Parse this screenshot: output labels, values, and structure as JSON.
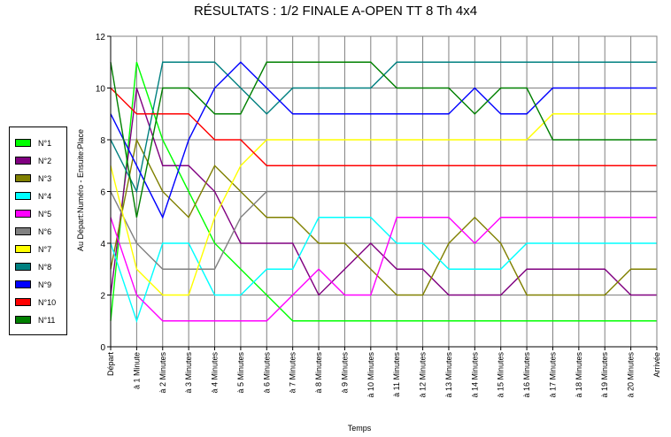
{
  "chart_data": {
    "type": "line",
    "title": "RÉSULTATS : 1/2 FINALE A-OPEN TT 8 Th 4x4",
    "xlabel": "Temps",
    "ylabel": "Au Départ:Numéro - Ensuite:Place",
    "ylim": [
      0,
      12
    ],
    "yticks": [
      0,
      2,
      4,
      6,
      8,
      10,
      12
    ],
    "grid": true,
    "legend_position": "left",
    "categories": [
      "Départ",
      "à 1 Minute",
      "à 2 Minutes",
      "à 3 Minutes",
      "à 4 Minutes",
      "à 5 Minutes",
      "à 6 Minutes",
      "à 7 Minutes",
      "à 8 Minutes",
      "à 9 Minutes",
      "à 10 Minutes",
      "à 11 Minutes",
      "à 12 Minutes",
      "à 13 Minutes",
      "à 14 Minutes",
      "à 15 Minutes",
      "à 16 Minutes",
      "à 17 Minutes",
      "à 18 Minutes",
      "à 19 Minutes",
      "à 20 Minutes",
      "Arrivée"
    ],
    "series": [
      {
        "name": "N°1",
        "color": "#00ff00",
        "values": [
          1,
          11,
          8,
          6,
          4,
          3,
          2,
          1,
          1,
          1,
          1,
          1,
          1,
          1,
          1,
          1,
          1,
          1,
          1,
          1,
          1,
          1
        ]
      },
      {
        "name": "N°2",
        "color": "#800080",
        "values": [
          2,
          10,
          7,
          7,
          6,
          4,
          4,
          4,
          2,
          3,
          4,
          3,
          3,
          2,
          2,
          2,
          3,
          3,
          3,
          3,
          2,
          2
        ]
      },
      {
        "name": "N°3",
        "color": "#808000",
        "values": [
          3,
          8,
          6,
          5,
          7,
          6,
          5,
          5,
          4,
          4,
          3,
          2,
          2,
          4,
          5,
          4,
          2,
          2,
          2,
          2,
          3,
          3
        ]
      },
      {
        "name": "N°4",
        "color": "#00ffff",
        "values": [
          4,
          1,
          4,
          4,
          2,
          2,
          3,
          3,
          5,
          5,
          5,
          4,
          4,
          3,
          3,
          3,
          4,
          4,
          4,
          4,
          4,
          4
        ]
      },
      {
        "name": "N°5",
        "color": "#ff00ff",
        "values": [
          5,
          2,
          1,
          1,
          1,
          1,
          1,
          2,
          3,
          2,
          2,
          5,
          5,
          5,
          4,
          5,
          5,
          5,
          5,
          5,
          5,
          5
        ]
      },
      {
        "name": "N°6",
        "color": "#808080",
        "values": [
          6,
          4,
          3,
          3,
          3,
          5,
          6,
          6,
          6,
          6,
          6,
          6,
          6,
          6,
          6,
          6,
          6,
          6,
          6,
          6,
          6,
          6
        ]
      },
      {
        "name": "N°7",
        "color": "#ffff00",
        "values": [
          7,
          3,
          2,
          2,
          5,
          7,
          8,
          8,
          8,
          8,
          8,
          8,
          8,
          8,
          8,
          8,
          8,
          9,
          9,
          9,
          9,
          9
        ]
      },
      {
        "name": "N°8",
        "color": "#008080",
        "values": [
          8,
          6,
          11,
          11,
          11,
          10,
          9,
          10,
          10,
          10,
          10,
          11,
          11,
          11,
          11,
          11,
          11,
          11,
          11,
          11,
          11,
          11
        ]
      },
      {
        "name": "N°9",
        "color": "#0000ff",
        "values": [
          9,
          7,
          5,
          8,
          10,
          11,
          10,
          9,
          9,
          9,
          9,
          9,
          9,
          9,
          10,
          9,
          9,
          10,
          10,
          10,
          10,
          10
        ]
      },
      {
        "name": "N°10",
        "color": "#ff0000",
        "values": [
          10,
          9,
          9,
          9,
          8,
          8,
          7,
          7,
          7,
          7,
          7,
          7,
          7,
          7,
          7,
          7,
          7,
          7,
          7,
          7,
          7,
          7
        ]
      },
      {
        "name": "N°11",
        "color": "#008000",
        "values": [
          11,
          5,
          10,
          10,
          9,
          9,
          11,
          11,
          11,
          11,
          11,
          10,
          10,
          10,
          9,
          10,
          10,
          8,
          8,
          8,
          8,
          8
        ]
      }
    ]
  }
}
